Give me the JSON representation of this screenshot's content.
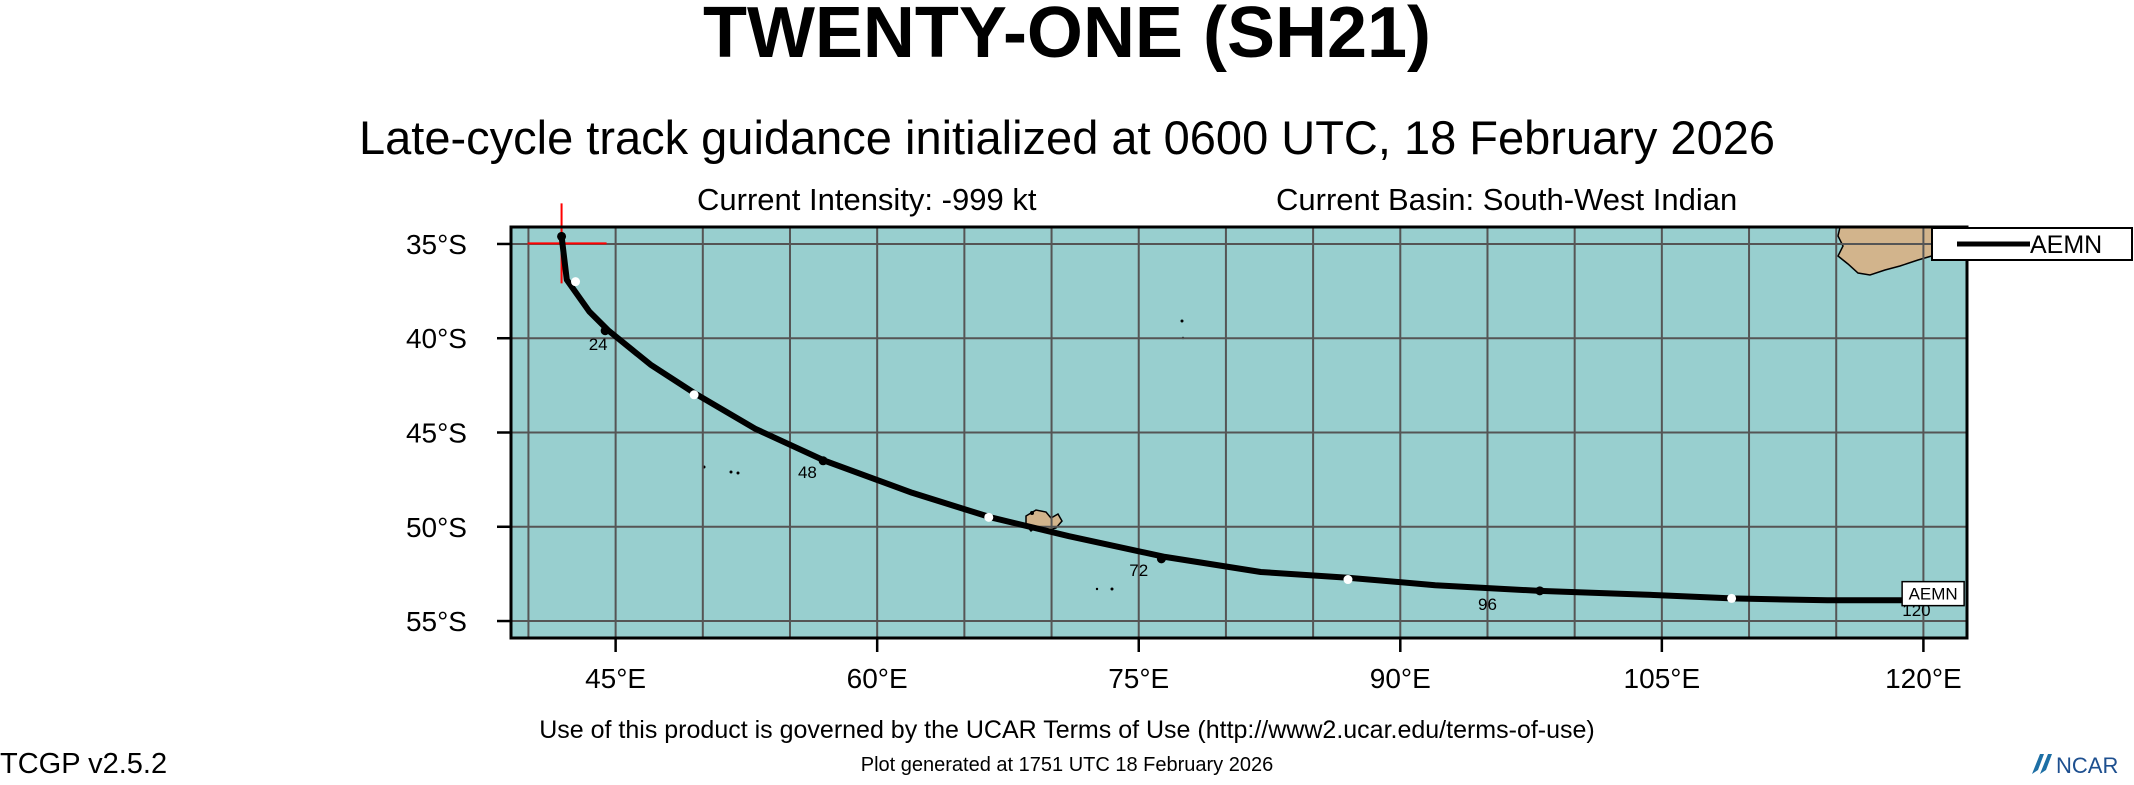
{
  "header": {
    "title": "TWENTY-ONE (SH21)",
    "subtitle": "Late-cycle track guidance initialized at 0600 UTC, 18 February 2026",
    "intensity": "Current Intensity: -999 kt",
    "basin": "Current Basin: South-West Indian"
  },
  "map": {
    "lon_range": [
      39,
      122.5
    ],
    "lat_range": [
      -55.9,
      -34.1
    ],
    "grid_lon_step": 5,
    "grid_lat_step": 5,
    "ocean_color": "#98cfcf",
    "land_color": "#d2b48c",
    "grid_color": "#555555",
    "lon_ticks": [
      {
        "value": 45,
        "label": "45°E"
      },
      {
        "value": 60,
        "label": "60°E"
      },
      {
        "value": 75,
        "label": "75°E"
      },
      {
        "value": 90,
        "label": "90°E"
      },
      {
        "value": 105,
        "label": "105°E"
      },
      {
        "value": 120,
        "label": "120°E"
      }
    ],
    "lat_ticks": [
      {
        "value": -35,
        "label": "35°S"
      },
      {
        "value": -40,
        "label": "40°S"
      },
      {
        "value": -45,
        "label": "45°S"
      },
      {
        "value": -50,
        "label": "50°S"
      },
      {
        "value": -55,
        "label": "55°S"
      }
    ],
    "initial_position": {
      "lon": 41.9,
      "lat": -34.6
    },
    "marker_color": "#ff0000"
  },
  "tracks": [
    {
      "name": "AEMN",
      "color": "#000000",
      "points": [
        {
          "lon": 41.9,
          "lat": -34.6
        },
        {
          "lon": 42.2,
          "lat": -36.9
        },
        {
          "lon": 43.5,
          "lat": -38.6
        },
        {
          "lon": 44.6,
          "lat": -39.6
        },
        {
          "lon": 47.0,
          "lat": -41.4
        },
        {
          "lon": 49.5,
          "lat": -42.9
        },
        {
          "lon": 53.0,
          "lat": -44.8
        },
        {
          "lon": 57.0,
          "lat": -46.5
        },
        {
          "lon": 62.0,
          "lat": -48.2
        },
        {
          "lon": 66.5,
          "lat": -49.5
        },
        {
          "lon": 71.0,
          "lat": -50.5
        },
        {
          "lon": 76.5,
          "lat": -51.6
        },
        {
          "lon": 82.0,
          "lat": -52.4
        },
        {
          "lon": 87.0,
          "lat": -52.7
        },
        {
          "lon": 92.0,
          "lat": -53.1
        },
        {
          "lon": 98.0,
          "lat": -53.4
        },
        {
          "lon": 104.0,
          "lat": -53.6
        },
        {
          "lon": 109.0,
          "lat": -53.8
        },
        {
          "lon": 114.5,
          "lat": -53.9
        },
        {
          "lon": 120.0,
          "lat": -53.9
        }
      ],
      "markers": [
        {
          "lon": 41.9,
          "lat": -34.6,
          "fill": "#000000"
        },
        {
          "lon": 42.7,
          "lat": -37.0,
          "fill": "#ffffff"
        },
        {
          "lon": 44.4,
          "lat": -39.6,
          "fill": "#000000"
        },
        {
          "lon": 49.5,
          "lat": -43.0,
          "fill": "#ffffff"
        },
        {
          "lon": 56.9,
          "lat": -46.5,
          "fill": "#000000"
        },
        {
          "lon": 66.4,
          "lat": -49.5,
          "fill": "#ffffff"
        },
        {
          "lon": 76.3,
          "lat": -51.7,
          "fill": "#000000"
        },
        {
          "lon": 87.0,
          "lat": -52.8,
          "fill": "#ffffff"
        },
        {
          "lon": 98.0,
          "lat": -53.4,
          "fill": "#000000"
        },
        {
          "lon": 109.0,
          "lat": -53.8,
          "fill": "#ffffff"
        },
        {
          "lon": 120.0,
          "lat": -53.9,
          "fill": "#000000"
        }
      ],
      "hour_labels": [
        {
          "lon": 44.0,
          "lat": -40.2,
          "text": "24"
        },
        {
          "lon": 56.0,
          "lat": -47.0,
          "text": "48"
        },
        {
          "lon": 75.0,
          "lat": -52.2,
          "text": "72"
        },
        {
          "lon": 95.0,
          "lat": -54.0,
          "text": "96"
        },
        {
          "lon": 119.6,
          "lat": -54.3,
          "text": "120"
        }
      ],
      "end_label": {
        "lon": 120.5,
        "lat": -53.6,
        "text": "AEMN"
      }
    }
  ],
  "legend": {
    "entries": [
      "AEMN"
    ]
  },
  "footer": {
    "terms": "Use of this product is governed by the UCAR Terms of Use (http://www2.ucar.edu/terms-of-use)",
    "generated": "Plot generated at 1751 UTC   18 February 2026",
    "version": "TCGP v2.5.2",
    "logo_text": "NCAR"
  }
}
